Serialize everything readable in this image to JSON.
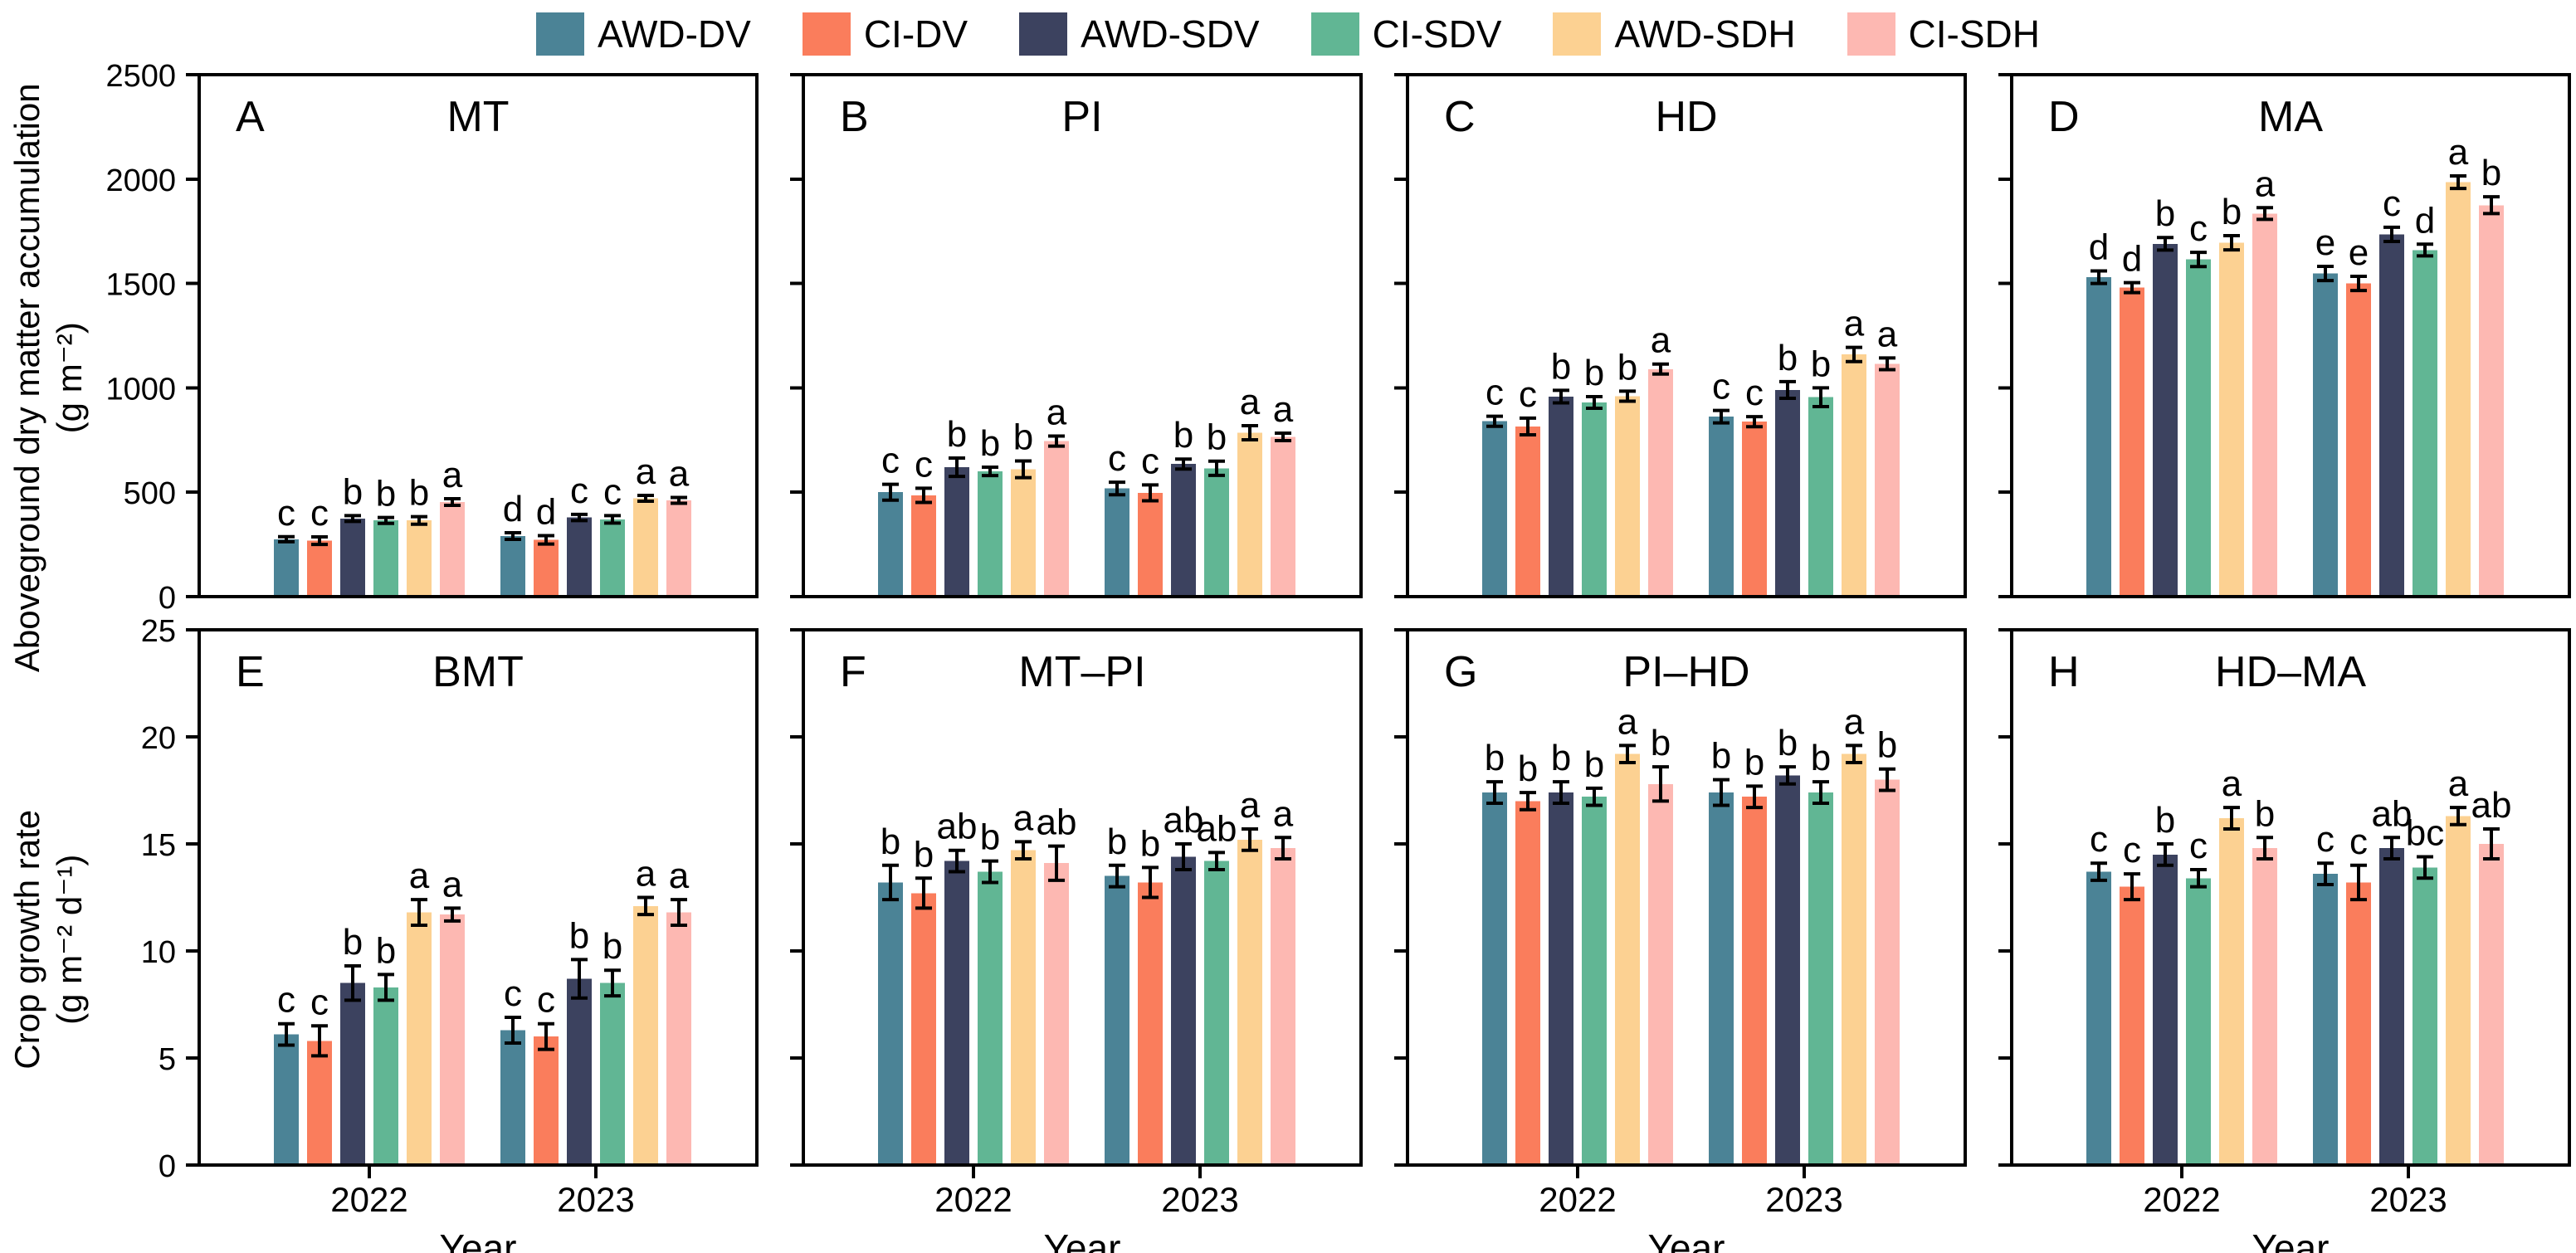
{
  "figure": {
    "background": "#ffffff"
  },
  "legend": {
    "items": [
      {
        "label": "AWD-DV",
        "color": "#4b8396"
      },
      {
        "label": "CI-DV",
        "color": "#fa7d5c"
      },
      {
        "label": "AWD-SDV",
        "color": "#3c425f"
      },
      {
        "label": "CI-SDV",
        "color": "#61b694"
      },
      {
        "label": "AWD-SDH",
        "color": "#fcd192"
      },
      {
        "label": "CI-SDH",
        "color": "#fdb8b2"
      }
    ]
  },
  "axes": {
    "rows": [
      {
        "ylabel_line1": "Aboveground dry matter accumulation",
        "ylabel_line2": "(g m⁻²)",
        "ymax": 2500,
        "yticks": [
          0,
          500,
          1000,
          1500,
          2000,
          2500
        ]
      },
      {
        "ylabel_line1": "Crop growth rate",
        "ylabel_line2": "(g m⁻² d⁻¹)",
        "ymax": 25,
        "yticks": [
          0,
          5,
          10,
          15,
          20,
          25
        ]
      }
    ],
    "x_label": "Year",
    "x_categories": [
      "2022",
      "2023"
    ]
  },
  "chart_data": [
    {
      "type": "bar",
      "panel_label": "A",
      "title": "MT",
      "row": 0,
      "series": [
        "AWD-DV",
        "CI-DV",
        "AWD-SDV",
        "CI-SDV",
        "AWD-SDH",
        "CI-SDH"
      ],
      "ylim": [
        0,
        2500
      ],
      "grid": false,
      "groups": [
        {
          "category": "2022",
          "values": [
            275,
            268,
            374,
            365,
            365,
            453
          ],
          "errors": [
            12,
            18,
            14,
            14,
            18,
            16
          ],
          "letters": [
            "c",
            "c",
            "b",
            "b",
            "b",
            "a"
          ]
        },
        {
          "category": "2023",
          "values": [
            290,
            272,
            379,
            370,
            471,
            461
          ],
          "errors": [
            16,
            20,
            15,
            18,
            14,
            14
          ],
          "letters": [
            "d",
            "d",
            "c",
            "c",
            "a",
            "a"
          ]
        }
      ]
    },
    {
      "type": "bar",
      "panel_label": "B",
      "title": "PI",
      "row": 0,
      "series": [
        "AWD-DV",
        "CI-DV",
        "AWD-SDV",
        "CI-SDV",
        "AWD-SDH",
        "CI-SDH"
      ],
      "ylim": [
        0,
        2500
      ],
      "grid": false,
      "groups": [
        {
          "category": "2022",
          "values": [
            500,
            485,
            620,
            600,
            610,
            745
          ],
          "errors": [
            38,
            34,
            44,
            20,
            40,
            24
          ],
          "letters": [
            "c",
            "c",
            "b",
            "b",
            "b",
            "a"
          ]
        },
        {
          "category": "2023",
          "values": [
            518,
            497,
            635,
            615,
            785,
            765
          ],
          "errors": [
            30,
            38,
            24,
            34,
            34,
            18
          ],
          "letters": [
            "c",
            "c",
            "b",
            "b",
            "a",
            "a"
          ]
        }
      ]
    },
    {
      "type": "bar",
      "panel_label": "C",
      "title": "HD",
      "row": 0,
      "series": [
        "AWD-DV",
        "CI-DV",
        "AWD-SDV",
        "CI-SDV",
        "AWD-SDH",
        "CI-SDH"
      ],
      "ylim": [
        0,
        2500
      ],
      "grid": false,
      "groups": [
        {
          "category": "2022",
          "values": [
            840,
            815,
            958,
            930,
            960,
            1090
          ],
          "errors": [
            24,
            40,
            30,
            28,
            24,
            24
          ],
          "letters": [
            "c",
            "c",
            "b",
            "b",
            "b",
            "a"
          ]
        },
        {
          "category": "2023",
          "values": [
            862,
            838,
            990,
            955,
            1160,
            1115
          ],
          "errors": [
            30,
            24,
            40,
            45,
            34,
            28
          ],
          "letters": [
            "c",
            "c",
            "b",
            "b",
            "a",
            "a"
          ]
        }
      ]
    },
    {
      "type": "bar",
      "panel_label": "D",
      "title": "MA",
      "row": 0,
      "series": [
        "AWD-DV",
        "CI-DV",
        "AWD-SDV",
        "CI-SDV",
        "AWD-SDH",
        "CI-SDH"
      ],
      "ylim": [
        0,
        2500
      ],
      "grid": false,
      "groups": [
        {
          "category": "2022",
          "values": [
            1530,
            1480,
            1690,
            1615,
            1695,
            1835
          ],
          "errors": [
            30,
            24,
            30,
            34,
            34,
            28
          ],
          "letters": [
            "d",
            "d",
            "b",
            "c",
            "b",
            "a"
          ]
        },
        {
          "category": "2023",
          "values": [
            1548,
            1500,
            1735,
            1660,
            1985,
            1875
          ],
          "errors": [
            34,
            34,
            34,
            28,
            30,
            40
          ],
          "letters": [
            "e",
            "e",
            "c",
            "d",
            "a",
            "b"
          ]
        }
      ]
    },
    {
      "type": "bar",
      "panel_label": "E",
      "title": "BMT",
      "row": 1,
      "series": [
        "AWD-DV",
        "CI-DV",
        "AWD-SDV",
        "CI-SDV",
        "AWD-SDH",
        "CI-SDH"
      ],
      "ylim": [
        0,
        25
      ],
      "grid": false,
      "groups": [
        {
          "category": "2022",
          "values": [
            6.1,
            5.8,
            8.5,
            8.3,
            11.8,
            11.7
          ],
          "errors": [
            0.5,
            0.7,
            0.8,
            0.6,
            0.6,
            0.3
          ],
          "letters": [
            "c",
            "c",
            "b",
            "b",
            "a",
            "a"
          ]
        },
        {
          "category": "2023",
          "values": [
            6.3,
            6.0,
            8.7,
            8.5,
            12.1,
            11.8
          ],
          "errors": [
            0.6,
            0.6,
            0.9,
            0.6,
            0.4,
            0.6
          ],
          "letters": [
            "c",
            "c",
            "b",
            "b",
            "a",
            "a"
          ]
        }
      ]
    },
    {
      "type": "bar",
      "panel_label": "F",
      "title": "MT–PI",
      "row": 1,
      "series": [
        "AWD-DV",
        "CI-DV",
        "AWD-SDV",
        "CI-SDV",
        "AWD-SDH",
        "CI-SDH"
      ],
      "ylim": [
        0,
        25
      ],
      "grid": false,
      "groups": [
        {
          "category": "2022",
          "values": [
            13.2,
            12.7,
            14.2,
            13.7,
            14.7,
            14.1
          ],
          "errors": [
            0.8,
            0.7,
            0.5,
            0.5,
            0.4,
            0.8
          ],
          "letters": [
            "b",
            "b",
            "ab",
            "b",
            "a",
            "ab"
          ]
        },
        {
          "category": "2023",
          "values": [
            13.5,
            13.2,
            14.4,
            14.2,
            15.2,
            14.8
          ],
          "errors": [
            0.5,
            0.7,
            0.6,
            0.4,
            0.5,
            0.5
          ],
          "letters": [
            "b",
            "b",
            "ab",
            "ab",
            "a",
            "a"
          ]
        }
      ]
    },
    {
      "type": "bar",
      "panel_label": "G",
      "title": "PI–HD",
      "row": 1,
      "series": [
        "AWD-DV",
        "CI-DV",
        "AWD-SDV",
        "CI-SDV",
        "AWD-SDH",
        "CI-SDH"
      ],
      "ylim": [
        0,
        25
      ],
      "grid": false,
      "groups": [
        {
          "category": "2022",
          "values": [
            17.4,
            17.0,
            17.4,
            17.2,
            19.2,
            17.8
          ],
          "errors": [
            0.5,
            0.4,
            0.5,
            0.4,
            0.4,
            0.8
          ],
          "letters": [
            "b",
            "b",
            "b",
            "b",
            "a",
            "b"
          ]
        },
        {
          "category": "2023",
          "values": [
            17.4,
            17.2,
            18.2,
            17.4,
            19.2,
            18.0
          ],
          "errors": [
            0.6,
            0.5,
            0.4,
            0.5,
            0.4,
            0.5
          ],
          "letters": [
            "b",
            "b",
            "b",
            "b",
            "a",
            "b"
          ]
        }
      ]
    },
    {
      "type": "bar",
      "panel_label": "H",
      "title": "HD–MA",
      "row": 1,
      "series": [
        "AWD-DV",
        "CI-DV",
        "AWD-SDV",
        "CI-SDV",
        "AWD-SDH",
        "CI-SDH"
      ],
      "ylim": [
        0,
        25
      ],
      "grid": false,
      "groups": [
        {
          "category": "2022",
          "values": [
            13.7,
            13.0,
            14.5,
            13.4,
            16.2,
            14.8
          ],
          "errors": [
            0.4,
            0.6,
            0.5,
            0.4,
            0.5,
            0.5
          ],
          "letters": [
            "c",
            "c",
            "b",
            "c",
            "a",
            "b"
          ]
        },
        {
          "category": "2023",
          "values": [
            13.6,
            13.2,
            14.8,
            13.9,
            16.3,
            15.0
          ],
          "errors": [
            0.5,
            0.8,
            0.5,
            0.5,
            0.4,
            0.7
          ],
          "letters": [
            "c",
            "c",
            "ab",
            "bc",
            "a",
            "ab"
          ]
        }
      ]
    }
  ]
}
